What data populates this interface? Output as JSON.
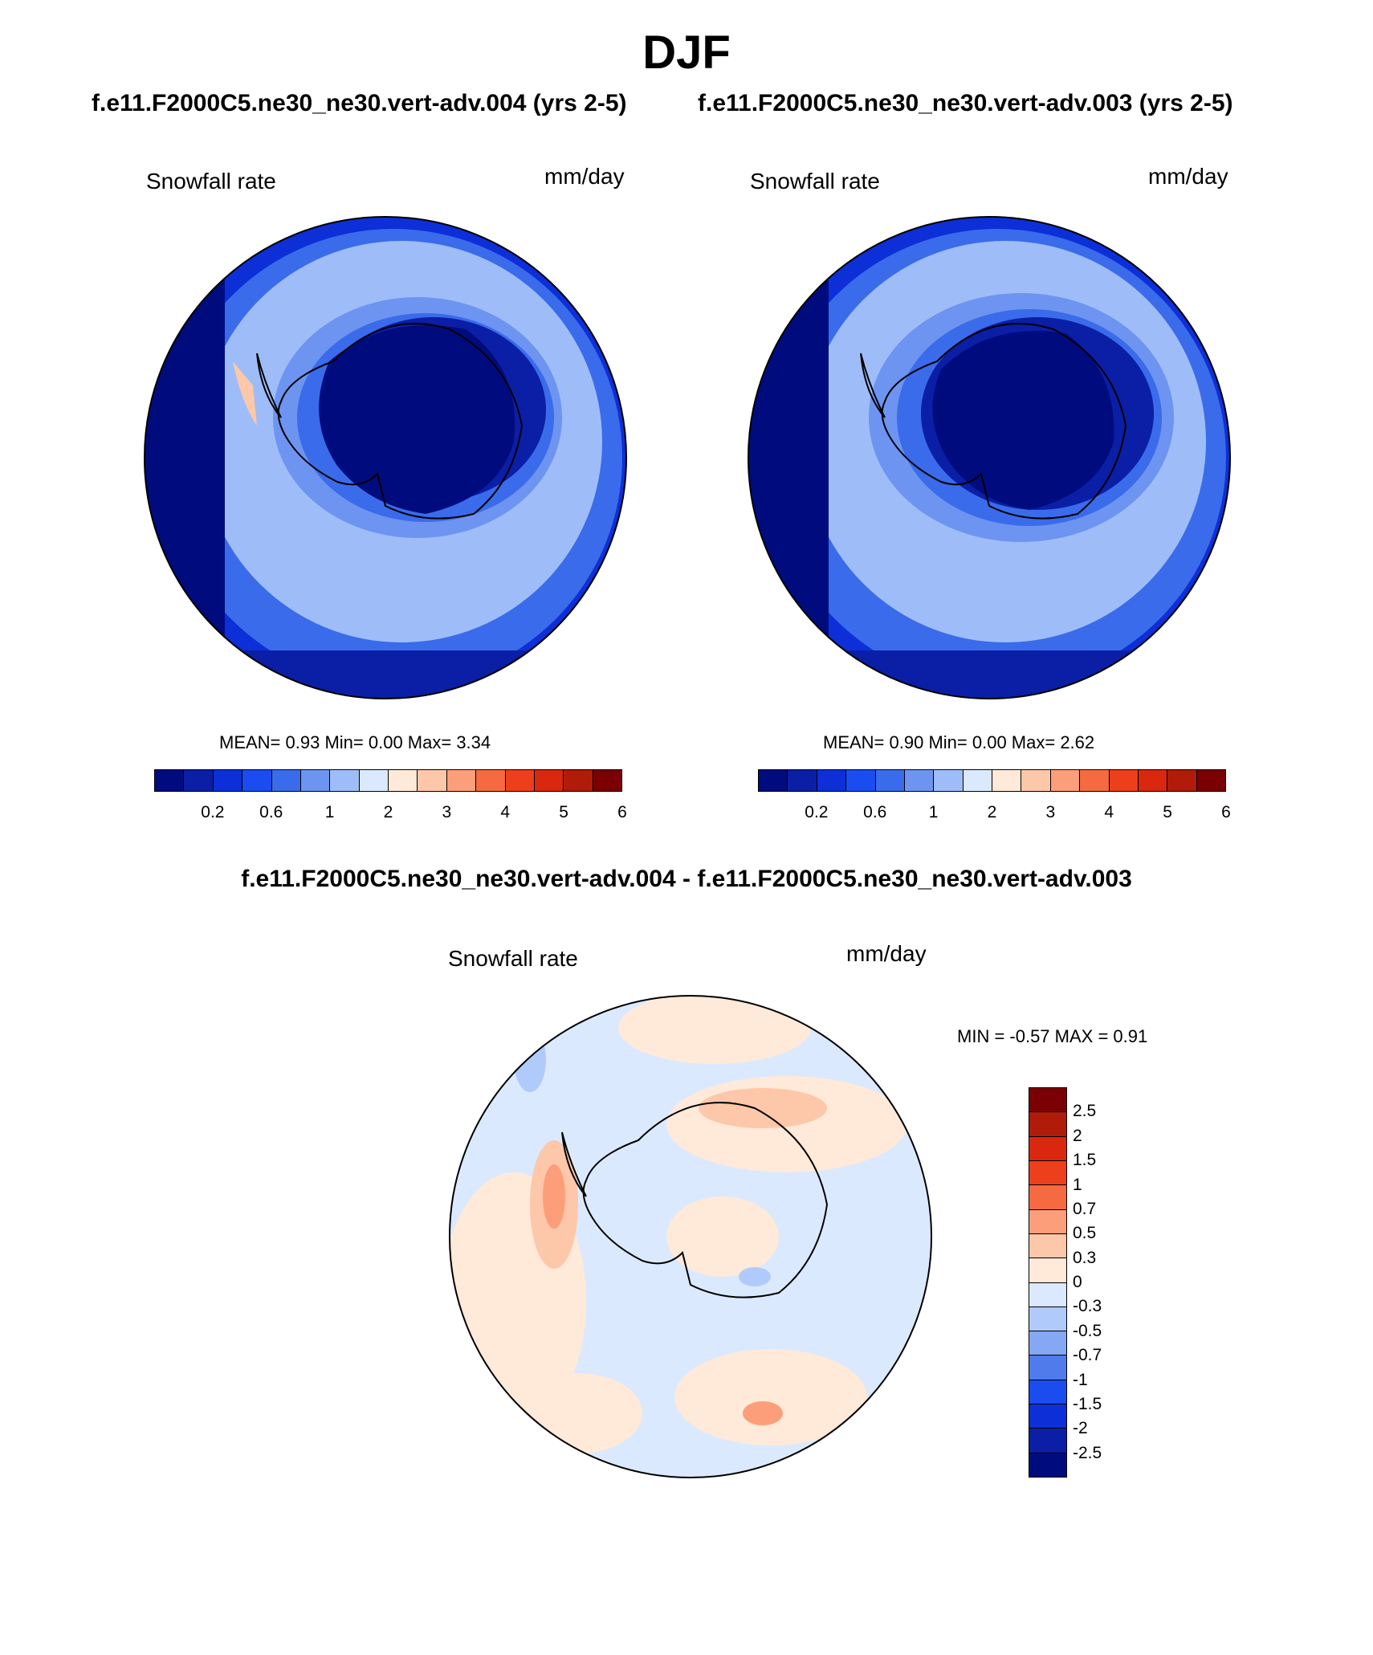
{
  "figure": {
    "season": "DJF",
    "case1_title": "f.e11.F2000C5.ne30_ne30.vert-adv.004 (yrs 2-5)",
    "case2_title": "f.e11.F2000C5.ne30_ne30.vert-adv.003 (yrs 2-5)",
    "diff_title": "f.e11.F2000C5.ne30_ne30.vert-adv.004 - f.e11.F2000C5.ne30_ne30.vert-adv.003"
  },
  "panels": [
    {
      "variable": "Snowfall rate",
      "units": "mm/day",
      "stats_text": "MEAN=   0.93   Min=    0.00   Max=    3.34",
      "mean": 0.93,
      "min": 0.0,
      "max": 3.34
    },
    {
      "variable": "Snowfall rate",
      "units": "mm/day",
      "stats_text": "MEAN=   0.90   Min=    0.00   Max=    2.62",
      "mean": 0.9,
      "min": 0.0,
      "max": 2.62
    },
    {
      "variable": "Snowfall rate",
      "units": "mm/day",
      "stats_text": "MIN =   -0.57 MAX =    0.91",
      "min": -0.57,
      "max": 0.91
    }
  ],
  "colorbar_abs": {
    "colors": [
      "#000c7d",
      "#0a1fa6",
      "#0c2fd8",
      "#1a4cf0",
      "#3a6bea",
      "#6d94f0",
      "#9ebdf8",
      "#dbe9ff",
      "#ffe9d9",
      "#fdc7a9",
      "#fc9e7a",
      "#f56a40",
      "#ed3f1b",
      "#d9280e",
      "#b01b0a",
      "#7a0003"
    ],
    "tick_labels": [
      "0.2",
      "0.6",
      "1",
      "2",
      "3",
      "4",
      "5",
      "6"
    ]
  },
  "colorbar_diff": {
    "colors": [
      "#7a0003",
      "#b01b0a",
      "#d9280e",
      "#ed3f1b",
      "#f56a40",
      "#fc9e7a",
      "#fdc7a9",
      "#ffe9d9",
      "#dbe9ff",
      "#b0cbfb",
      "#84a8f4",
      "#4f7cea",
      "#1a4cf0",
      "#0c2fd8",
      "#0a1fa6",
      "#000c7d"
    ],
    "tick_labels": [
      "2.5",
      "2",
      "1.5",
      "1",
      "0.7",
      "0.5",
      "0.3",
      "0",
      "-0.3",
      "-0.5",
      "-0.7",
      "-1",
      "-1.5",
      "-2",
      "-2.5"
    ]
  }
}
